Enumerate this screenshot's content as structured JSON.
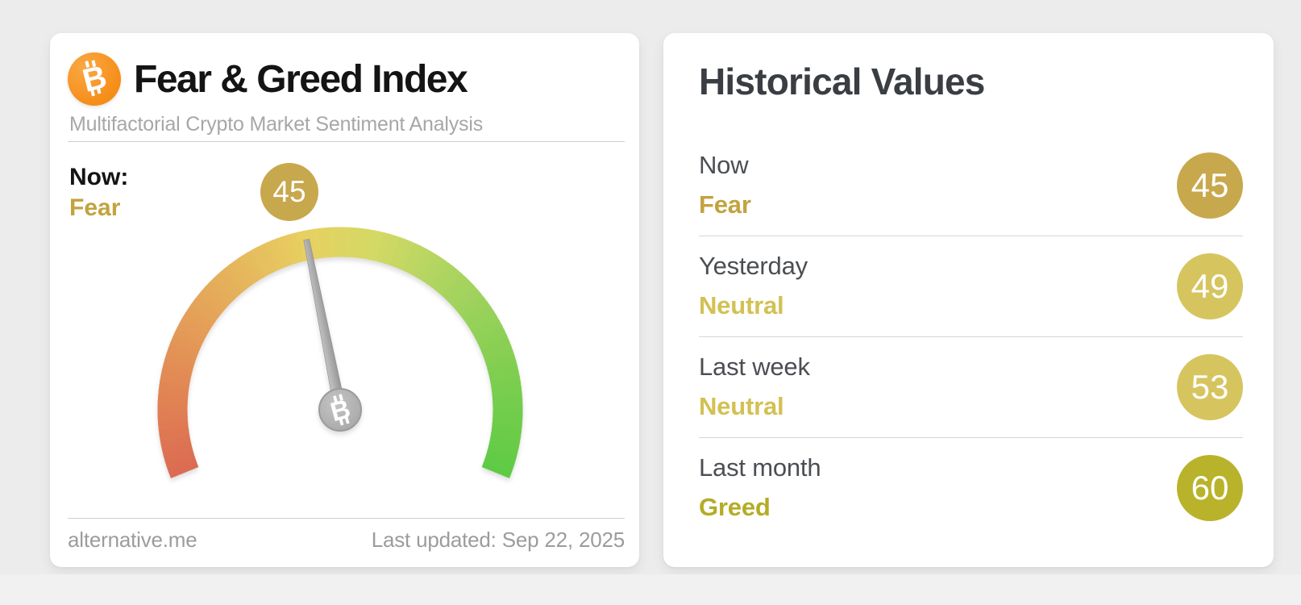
{
  "fear_greed_card": {
    "title": "Fear & Greed Index",
    "subtitle": "Multifactorial Crypto Market Sentiment Analysis",
    "now_label": "Now:",
    "now_classification": "Fear",
    "now_value": "45",
    "badge_color": "#c8a84d",
    "classification_color": "#c3a23f",
    "source": "alternative.me",
    "last_updated": "Last updated: Sep 22, 2025",
    "bitcoin_orange": "#f7931a"
  },
  "historical_card": {
    "title": "Historical Values",
    "rows": [
      {
        "label": "Now",
        "classification": "Fear",
        "value": "45",
        "badge_color": "#c8a84d",
        "classification_color": "#c3a23f"
      },
      {
        "label": "Yesterday",
        "classification": "Neutral",
        "value": "49",
        "badge_color": "#d6c55f",
        "classification_color": "#d2c153"
      },
      {
        "label": "Last week",
        "classification": "Neutral",
        "value": "53",
        "badge_color": "#d6c55f",
        "classification_color": "#d2c153"
      },
      {
        "label": "Last month",
        "classification": "Greed",
        "value": "60",
        "badge_color": "#b9b32b",
        "classification_color": "#b3ad26"
      }
    ]
  },
  "chart_data": {
    "type": "gauge",
    "title": "Fear & Greed Index",
    "value": 45,
    "min": 0,
    "max": 100,
    "classification": "Fear",
    "start_angle_deg": 202,
    "sweep_deg": 224,
    "legend": "red = Extreme Fear (0), green = Extreme Greed (100)",
    "scale_stops": [
      {
        "pos": 0.0,
        "color": "#db6a52"
      },
      {
        "pos": 0.15,
        "color": "#e28a55"
      },
      {
        "pos": 0.3,
        "color": "#e5ad5a"
      },
      {
        "pos": 0.45,
        "color": "#e7d061"
      },
      {
        "pos": 0.55,
        "color": "#d5d965"
      },
      {
        "pos": 0.7,
        "color": "#a5d35f"
      },
      {
        "pos": 0.85,
        "color": "#7ece50"
      },
      {
        "pos": 1.0,
        "color": "#5ecb45"
      }
    ],
    "historical": [
      {
        "label": "Now",
        "classification": "Fear",
        "value": 45
      },
      {
        "label": "Yesterday",
        "classification": "Neutral",
        "value": 49
      },
      {
        "label": "Last week",
        "classification": "Neutral",
        "value": 53
      },
      {
        "label": "Last month",
        "classification": "Greed",
        "value": 60
      }
    ]
  }
}
